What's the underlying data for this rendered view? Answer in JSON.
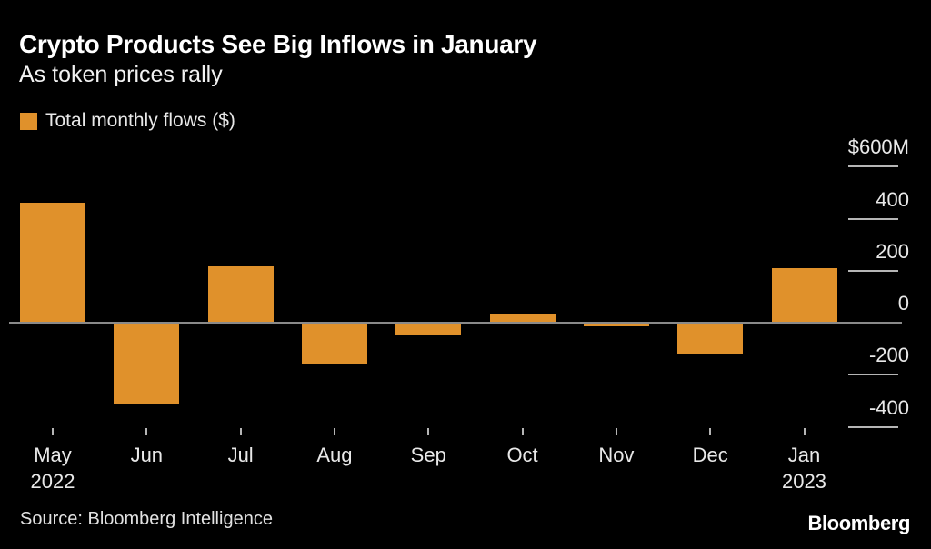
{
  "chart_data": {
    "type": "bar",
    "title": "Crypto Products See Big Inflows in January",
    "subtitle": "As token prices rally",
    "legend": {
      "label": "Total monthly flows ($)",
      "color": "#E0912B"
    },
    "unit": "$M",
    "categories": [
      {
        "month": "May",
        "year": "2022"
      },
      {
        "month": "Jun"
      },
      {
        "month": "Jul"
      },
      {
        "month": "Aug"
      },
      {
        "month": "Sep"
      },
      {
        "month": "Oct"
      },
      {
        "month": "Nov"
      },
      {
        "month": "Dec"
      },
      {
        "month": "Jan",
        "year": "2023"
      }
    ],
    "values": [
      460,
      -310,
      215,
      -160,
      -50,
      35,
      -15,
      -120,
      210
    ],
    "ylim": [
      -500,
      700
    ],
    "y_ticks": [
      {
        "value": 600,
        "label": "$600M"
      },
      {
        "value": 400,
        "label": "400"
      },
      {
        "value": 200,
        "label": "200"
      },
      {
        "value": 0,
        "label": "0"
      },
      {
        "value": -200,
        "label": "-200"
      },
      {
        "value": -400,
        "label": "-400"
      }
    ],
    "bar_color": "#E0912B",
    "baseline_color": "#8A8A8A",
    "grid": "right tick stubs, full-width zero baseline",
    "legend_position": "top-left"
  },
  "footer": {
    "source": "Source: Bloomberg Intelligence",
    "brand": "Bloomberg"
  }
}
